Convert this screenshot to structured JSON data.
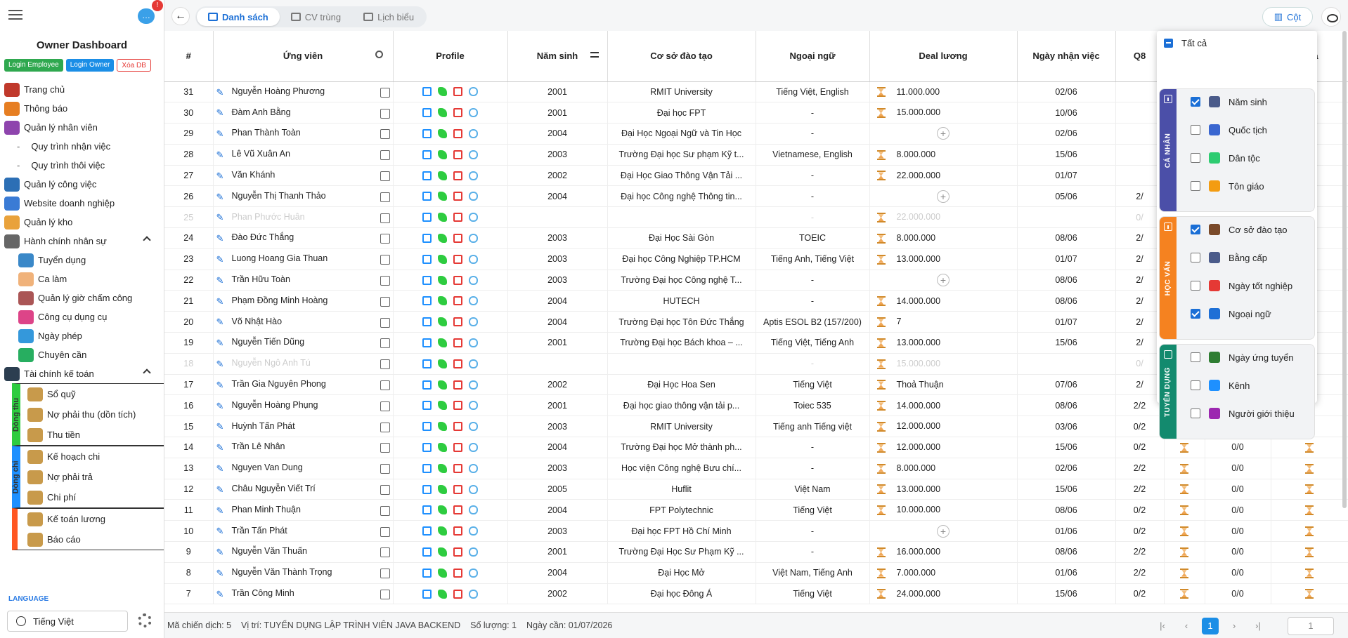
{
  "sidebar": {
    "notif_count": "!",
    "title": "Owner Dashboard",
    "btn_login_employee": "Login Employee",
    "btn_login_owner": "Login Owner",
    "btn_xoa_db": "Xóa DB",
    "menu": [
      "Trang chủ",
      "Thông báo",
      "Quản lý nhân viên",
      "Quy trình nhận việc",
      "Quy trình thôi việc",
      "Quản lý công việc",
      "Website doanh nghiệp",
      "Quản lý kho",
      "Hành chính nhân sự",
      "Tuyển dụng",
      "Ca làm",
      "Quản lý giờ chấm công",
      "Công cụ dụng cụ",
      "Ngày phép",
      "Chuyên cần",
      "Tài chính kế toán"
    ],
    "group_thu_label": "Dòng thu",
    "group_thu": [
      "Sổ quỹ",
      "Nợ phải thu (dồn tích)",
      "Thu tiền"
    ],
    "group_chi_label": "Dòng chi",
    "group_chi": [
      "Kế hoạch chi",
      "Nợ phải trả",
      "Chi phí"
    ],
    "group_other": [
      "Kế toán lương",
      "Báo cáo"
    ],
    "language_label": "LANGUAGE",
    "language_value": "Tiếng Việt"
  },
  "topbar": {
    "tabs": [
      "Danh sách",
      "CV trùng",
      "Lịch biểu"
    ],
    "cot_label": "Cột"
  },
  "columns": [
    "#",
    "Ứng viên",
    "Profile",
    "Năm sinh",
    "Cơ sở đào tạo",
    "Ngoại ngữ",
    "Deal lương",
    "Ngày nhận việc",
    "Q8",
    "",
    "",
    "Quà"
  ],
  "rows": [
    {
      "id": "31",
      "name": "Nguyễn Hoàng Phương",
      "year": "2001",
      "school": "RMIT University",
      "lang": "Tiếng Việt, English",
      "deal": "11.000.000",
      "date": "02/06",
      "q8": "",
      "dim": false
    },
    {
      "id": "30",
      "name": "Đàm Anh Bằng",
      "year": "2001",
      "school": "Đại học FPT",
      "lang": "-",
      "deal": "15.000.000",
      "date": "10/06",
      "q8": "",
      "dim": false
    },
    {
      "id": "29",
      "name": "Phan Thành Toàn",
      "year": "2004",
      "school": "Đại Học Ngoại Ngữ và Tin Học",
      "lang": "-",
      "deal": "",
      "date": "02/06",
      "q8": "",
      "dim": false
    },
    {
      "id": "28",
      "name": "Lê Vũ Xuân An",
      "year": "2003",
      "school": "Trường Đại học Sư phạm Kỹ t...",
      "lang": "Vietnamese, English",
      "deal": "8.000.000",
      "date": "15/06",
      "q8": "",
      "dim": false
    },
    {
      "id": "27",
      "name": "Văn Khánh",
      "year": "2002",
      "school": "Đại Học Giao Thông Vận Tải ...",
      "lang": "-",
      "deal": "22.000.000",
      "date": "01/07",
      "q8": "",
      "dim": false
    },
    {
      "id": "26",
      "name": "Nguyễn Thị Thanh Thảo",
      "year": "2004",
      "school": "Đại học Công nghệ Thông tin...",
      "lang": "-",
      "deal": "",
      "date": "05/06",
      "q8": "2/",
      "dim": false
    },
    {
      "id": "25",
      "name": "Phan Phước Huân",
      "year": "",
      "school": "",
      "lang": "-",
      "deal": "22.000.000",
      "date": "",
      "q8": "0/",
      "dim": true
    },
    {
      "id": "24",
      "name": "Đào Đức Thắng",
      "year": "2003",
      "school": "Đại Học Sài Gòn",
      "lang": "TOEIC",
      "deal": "8.000.000",
      "date": "08/06",
      "q8": "2/",
      "dim": false
    },
    {
      "id": "23",
      "name": "Luong Hoang Gia Thuan",
      "year": "2003",
      "school": "Đại học Công Nghiệp TP.HCM",
      "lang": "Tiếng Anh, Tiếng Việt",
      "deal": "13.000.000",
      "date": "01/07",
      "q8": "2/",
      "dim": false
    },
    {
      "id": "22",
      "name": "Trần Hữu Toàn",
      "year": "2003",
      "school": "Trường Đại học Công nghệ T...",
      "lang": "-",
      "deal": "",
      "date": "08/06",
      "q8": "2/",
      "dim": false
    },
    {
      "id": "21",
      "name": "Phạm Đồng Minh Hoàng",
      "year": "2004",
      "school": "HUTECH",
      "lang": "-",
      "deal": "14.000.000",
      "date": "08/06",
      "q8": "2/",
      "dim": false
    },
    {
      "id": "20",
      "name": "Võ Nhật Hào",
      "year": "2004",
      "school": "Trường Đại học Tôn Đức Thắng",
      "lang": "Aptis ESOL B2 (157/200)",
      "deal": "7",
      "date": "01/07",
      "q8": "2/",
      "dim": false
    },
    {
      "id": "19",
      "name": "Nguyễn Tiến Dũng",
      "year": "2001",
      "school": "Trường Đại học Bách khoa – ...",
      "lang": "Tiếng Việt, Tiếng Anh",
      "deal": "13.000.000",
      "date": "15/06",
      "q8": "2/",
      "dim": false
    },
    {
      "id": "18",
      "name": "Nguyễn Ngô Anh Tú",
      "year": "",
      "school": "",
      "lang": "-",
      "deal": "15.000.000",
      "date": "",
      "q8": "0/",
      "dim": true
    },
    {
      "id": "17",
      "name": "Trần Gia Nguyên Phong",
      "year": "2002",
      "school": "Đại Học Hoa Sen",
      "lang": "Tiếng Việt",
      "deal": "Thoả Thuận",
      "date": "07/06",
      "q8": "2/",
      "dim": false
    },
    {
      "id": "16",
      "name": "Nguyễn Hoàng Phụng",
      "year": "2001",
      "school": "Đại học giao thông vận tải p...",
      "lang": "Toiec 535",
      "deal": "14.000.000",
      "date": "08/06",
      "q8": "2/2",
      "dim": false
    },
    {
      "id": "15",
      "name": "Huỳnh Tấn Phát",
      "year": "2003",
      "school": "RMIT University",
      "lang": "Tiếng anh Tiếng việt",
      "deal": "12.000.000",
      "date": "03/06",
      "q8": "0/2",
      "dim": false
    },
    {
      "id": "14",
      "name": "Trần Lê Nhân",
      "year": "2004",
      "school": "Trường Đại học Mở thành ph...",
      "lang": "-",
      "deal": "12.000.000",
      "date": "15/06",
      "q8": "0/2",
      "dim": false
    },
    {
      "id": "13",
      "name": "Nguyen Van Dung",
      "year": "2003",
      "school": "Học viện Công nghệ Bưu chí...",
      "lang": "-",
      "deal": "8.000.000",
      "date": "02/06",
      "q8": "2/2",
      "dim": false
    },
    {
      "id": "12",
      "name": "Châu Nguyễn Viết Trí",
      "year": "2005",
      "school": "Huflit",
      "lang": "Việt Nam",
      "deal": "13.000.000",
      "date": "15/06",
      "q8": "2/2",
      "dim": false
    },
    {
      "id": "11",
      "name": "Phan Minh Thuận",
      "year": "2004",
      "school": "FPT Polytechnic",
      "lang": "Tiếng Việt",
      "deal": "10.000.000",
      "date": "08/06",
      "q8": "0/2",
      "dim": false
    },
    {
      "id": "10",
      "name": "Trần Tấn Phát",
      "year": "2003",
      "school": "Đại học FPT Hồ Chí Minh",
      "lang": "-",
      "deal": "",
      "date": "01/06",
      "q8": "0/2",
      "dim": false
    },
    {
      "id": "9",
      "name": "Nguyễn Văn Thuấn",
      "year": "2001",
      "school": "Trường Đại Học Sư Phạm Kỹ ...",
      "lang": "-",
      "deal": "16.000.000",
      "date": "08/06",
      "q8": "2/2",
      "dim": false
    },
    {
      "id": "8",
      "name": "Nguyễn Văn Thành Trọng",
      "year": "2004",
      "school": "Đại Học Mở",
      "lang": "Việt Nam, Tiếng Anh",
      "deal": "7.000.000",
      "date": "01/06",
      "q8": "2/2",
      "dim": false
    },
    {
      "id": "7",
      "name": "Trần Công Minh",
      "year": "2002",
      "school": "Đại học Đông Á",
      "lang": "Tiếng Việt",
      "deal": "24.000.000",
      "date": "15/06",
      "q8": "0/2",
      "dim": false
    }
  ],
  "extra_col": [
    "",
    "",
    "",
    "",
    "",
    "",
    "",
    "",
    "",
    "",
    "",
    "",
    "",
    "",
    "",
    "0/0",
    "0/0",
    "0/0",
    "0/0",
    "0/0",
    "0/0",
    "0/0",
    "0/0",
    "0/0",
    "0/0"
  ],
  "footer": {
    "campaign": "Mã chiến dịch: 5",
    "position": "Vị trí: TUYỂN DỤNG LẬP TRÌNH VIÊN JAVA BACKEND",
    "quantity": "Số lượng: 1",
    "date_needed": "Ngày cần: 01/07/2026",
    "page": "1",
    "page_input": "1"
  },
  "colpanel": {
    "all_label": "Tất cả",
    "sections": [
      {
        "label": "CÁ NHÂN",
        "color": "#4b4fa8",
        "items": [
          {
            "label": "Năm sinh",
            "on": true
          },
          {
            "label": "Quốc tịch",
            "on": false
          },
          {
            "label": "Dân tộc",
            "on": false
          },
          {
            "label": "Tôn giáo",
            "on": false
          }
        ]
      },
      {
        "label": "HỌC VẤN",
        "color": "#f58220",
        "items": [
          {
            "label": "Cơ sở đào tạo",
            "on": true
          },
          {
            "label": "Bằng cấp",
            "on": false
          },
          {
            "label": "Ngày tốt nghiệp",
            "on": false
          },
          {
            "label": "Ngoại ngữ",
            "on": true
          }
        ]
      },
      {
        "label": "TUYỂN DỤNG",
        "color": "#138a6e",
        "items": [
          {
            "label": "Ngày ứng tuyển",
            "on": false
          },
          {
            "label": "Kênh",
            "on": false
          },
          {
            "label": "Người giới thiệu",
            "on": false
          }
        ]
      }
    ]
  }
}
